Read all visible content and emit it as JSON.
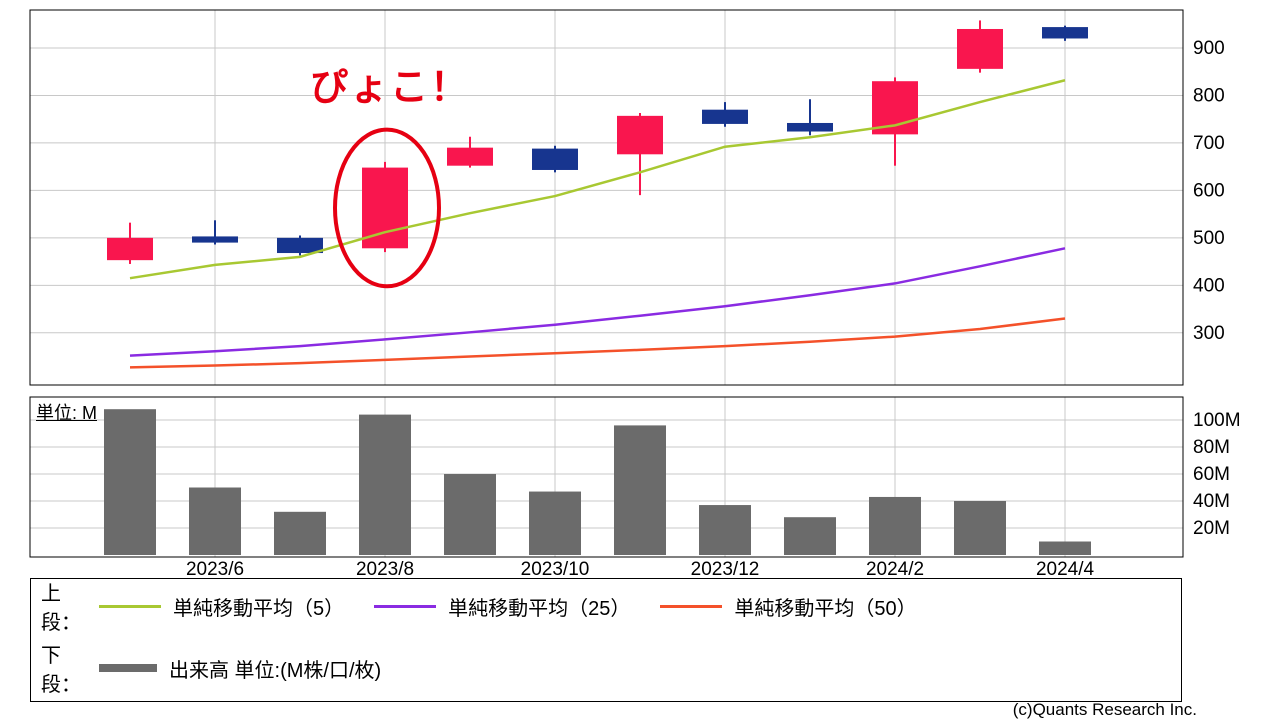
{
  "colors": {
    "up": "#f9164e",
    "down": "#17358f",
    "sma5": "#a8c832",
    "sma25": "#8a2be2",
    "sma50": "#f4512a",
    "volume": "#6b6b6b",
    "grid": "#c8c8c8",
    "border": "#000000",
    "annotation": "#e60012"
  },
  "annotation": {
    "text": "ぴょこ！",
    "target_month": "2023/8",
    "target_index": 3
  },
  "volume_unit_label": "単位: M",
  "copyright": "(c)Quants Research Inc.",
  "legend": {
    "upper_label": "上段：",
    "lower_label": "下段：",
    "sma5_label": "単純移動平均（5）",
    "sma25_label": "単純移動平均（25）",
    "sma50_label": "単純移動平均（50）",
    "volume_label": "出来高 単位:(M株/口/枚)"
  },
  "chart_data": [
    {
      "type": "candlestick",
      "panel": "upper",
      "title": "",
      "months": [
        "2023/5",
        "2023/6",
        "2023/7",
        "2023/8",
        "2023/9",
        "2023/10",
        "2023/11",
        "2023/12",
        "2024/1",
        "2024/2",
        "2024/3",
        "2024/4"
      ],
      "x_labels": [
        "2023/6",
        "2023/8",
        "2023/10",
        "2023/12",
        "2024/2",
        "2024/4"
      ],
      "x_label_indices": [
        1,
        3,
        5,
        7,
        9,
        11
      ],
      "ylim": [
        190,
        980
      ],
      "yticks": [
        300,
        400,
        500,
        600,
        700,
        800,
        900
      ],
      "grid": true,
      "candles": [
        {
          "open": 453,
          "close": 500,
          "high": 532,
          "low": 445
        },
        {
          "open": 503,
          "close": 490,
          "high": 537,
          "low": 486
        },
        {
          "open": 500,
          "close": 468,
          "high": 505,
          "low": 463
        },
        {
          "open": 478,
          "close": 648,
          "high": 660,
          "low": 470
        },
        {
          "open": 652,
          "close": 690,
          "high": 713,
          "low": 648
        },
        {
          "open": 688,
          "close": 643,
          "high": 694,
          "low": 638
        },
        {
          "open": 676,
          "close": 757,
          "high": 763,
          "low": 590
        },
        {
          "open": 770,
          "close": 740,
          "high": 786,
          "low": 734
        },
        {
          "open": 742,
          "close": 724,
          "high": 792,
          "low": 716
        },
        {
          "open": 718,
          "close": 830,
          "high": 838,
          "low": 652
        },
        {
          "open": 856,
          "close": 940,
          "high": 958,
          "low": 848
        },
        {
          "open": 944,
          "close": 920,
          "high": 947,
          "low": 915
        }
      ],
      "series": [
        {
          "name": "単純移動平均（5）",
          "key": "sma5",
          "values": [
            415,
            443,
            460,
            512,
            552,
            588,
            638,
            692,
            712,
            737,
            786,
            832
          ]
        },
        {
          "name": "単純移動平均（25）",
          "key": "sma25",
          "values": [
            252,
            261,
            272,
            286,
            301,
            317,
            336,
            356,
            379,
            404,
            440,
            478
          ]
        },
        {
          "name": "単純移動平均（50）",
          "key": "sma50",
          "values": [
            227,
            231,
            236,
            243,
            250,
            257,
            264,
            272,
            281,
            292,
            308,
            330
          ]
        }
      ]
    },
    {
      "type": "bar",
      "panel": "lower",
      "name": "出来高",
      "unit": "M",
      "yticks": [
        20,
        40,
        60,
        80,
        100
      ],
      "values": [
        108,
        50,
        32,
        104,
        60,
        47,
        96,
        37,
        28,
        43,
        40,
        10
      ]
    }
  ]
}
